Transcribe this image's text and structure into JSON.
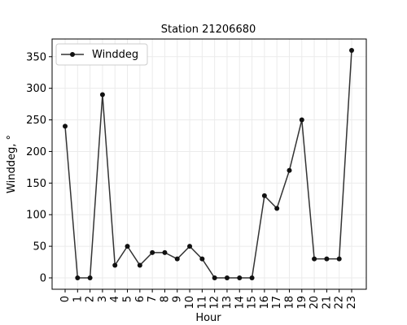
{
  "chart_data": {
    "type": "line",
    "title": "Station 21206680",
    "xlabel": "Hour",
    "ylabel": "Winddeg, °",
    "categories": [
      "0",
      "1",
      "2",
      "3",
      "4",
      "5",
      "6",
      "7",
      "8",
      "9",
      "10",
      "11",
      "12",
      "13",
      "14",
      "15",
      "16",
      "17",
      "18",
      "19",
      "20",
      "21",
      "22",
      "23"
    ],
    "series": [
      {
        "name": "Winddeg",
        "values": [
          240,
          0,
          0,
          290,
          20,
          50,
          20,
          40,
          40,
          30,
          50,
          30,
          0,
          0,
          0,
          0,
          130,
          110,
          170,
          250,
          30,
          30,
          30,
          360
        ],
        "color": "#333333"
      }
    ],
    "yticks": [
      0,
      50,
      100,
      150,
      200,
      250,
      300,
      350
    ],
    "ylim": [
      -18,
      378
    ],
    "grid": true,
    "legend_position": "top-left"
  }
}
